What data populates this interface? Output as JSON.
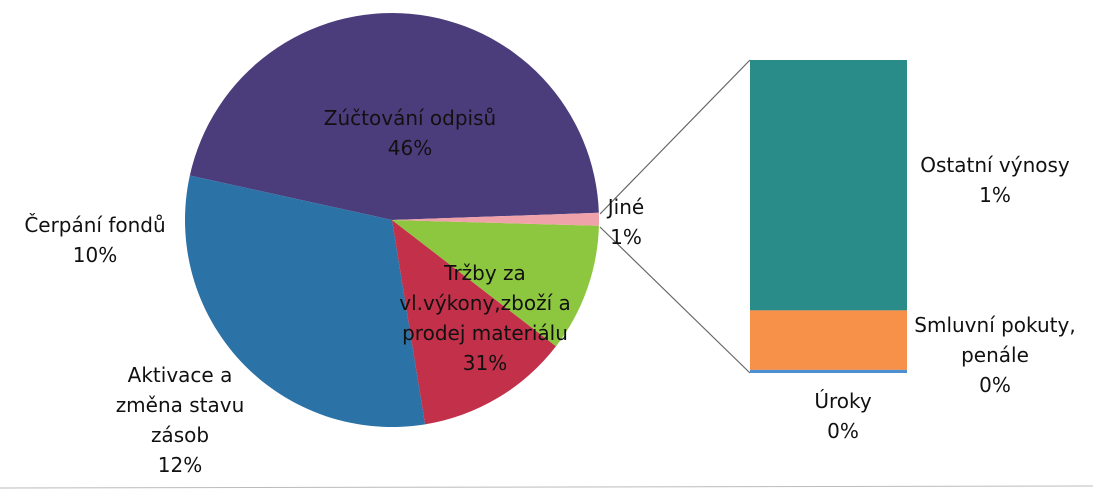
{
  "chart_data": {
    "type": "pie-of-bar",
    "categories": [
      "Zúčtování odpisů",
      "Tržby za vl.výkony,zboží a prodej materiálu",
      "Aktivace a změna stavu zásob",
      "Čerpání fondů",
      "Jiné"
    ],
    "values": [
      46,
      31,
      12,
      10,
      1
    ],
    "value_labels": [
      "46%",
      "31%",
      "12%",
      "10%",
      "1%"
    ],
    "colors": [
      "#4b3d7c",
      "#2b72a6",
      "#c2304a",
      "#8dc63f",
      "#f0a2aa"
    ],
    "bar": {
      "categories": [
        "Ostatní výnosy",
        "Smluvní pokuty, penále",
        "Úroky"
      ],
      "values": [
        0.8,
        0.19,
        0.01
      ],
      "value_labels": [
        "1%",
        "0%",
        "0%"
      ],
      "colors": [
        "#2a8c88",
        "#f7914a",
        "#4f8fd0"
      ]
    }
  }
}
